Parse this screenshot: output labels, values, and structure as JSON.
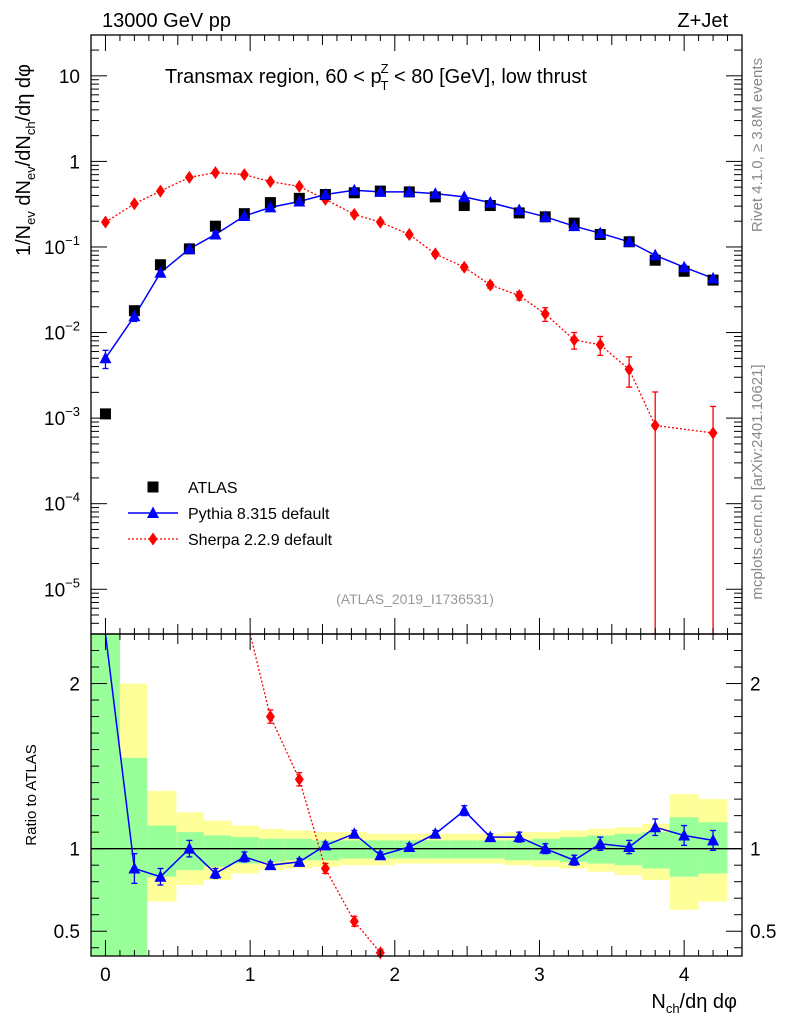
{
  "header": {
    "left": "13000 GeV pp",
    "right": "Z+Jet",
    "side_top": "Rivet 4.1.0, ≥ 3.8M events",
    "side_bottom": "mcplots.cern.ch [arXiv:2401.10621]",
    "analysis_id": "(ATLAS_2019_I1736531)"
  },
  "colors": {
    "data": "#000000",
    "pythia": "#0000ff",
    "sherpa": "#ff0000",
    "band_inner": "#99ff99",
    "band_outer": "#ffff99"
  },
  "chart_data": [
    {
      "type": "scatter",
      "title": "Transmax region, 60 < p_T^Z < 80 [GeV], low thrust",
      "title_parts": {
        "prefix": "Transmax region, 60 < p",
        "sup": "Z",
        "sub": "T",
        "suffix": " < 80 [GeV], low thrust"
      },
      "ylabel": "1/N_ev dN_ev/dN_ch/dη dφ",
      "ylabel_parts": [
        "1/N",
        "ev",
        " dN",
        "ev",
        "/dN",
        "ch",
        "/dη dφ"
      ],
      "yscale": "log",
      "ylim": [
        3e-06,
        30
      ],
      "xlim": [
        -0.1,
        4.4
      ],
      "ytick_labels": [
        {
          "v": 10,
          "base": "10",
          "exp": ""
        },
        {
          "v": 1,
          "base": "1",
          "exp": ""
        },
        {
          "v": 0.1,
          "base": "10",
          "exp": "−1"
        },
        {
          "v": 0.01,
          "base": "10",
          "exp": "−2"
        },
        {
          "v": 0.001,
          "base": "10",
          "exp": "−3"
        },
        {
          "v": 0.0001,
          "base": "10",
          "exp": "−4"
        },
        {
          "v": 1e-05,
          "base": "10",
          "exp": "−5"
        }
      ],
      "legend": [
        {
          "label": "ATLAS",
          "key": "atlas"
        },
        {
          "label": "Pythia 8.315 default",
          "key": "pythia"
        },
        {
          "label": "Sherpa 2.2.9 default",
          "key": "sherpa"
        }
      ],
      "series": [
        {
          "name": "ATLAS",
          "key": "atlas",
          "marker": "square",
          "x": [
            0.0,
            0.2,
            0.38,
            0.58,
            0.76,
            0.96,
            1.14,
            1.34,
            1.52,
            1.72,
            1.9,
            2.1,
            2.28,
            2.48,
            2.66,
            2.86,
            3.04,
            3.24,
            3.42,
            3.62,
            3.8,
            4.0,
            4.2
          ],
          "y": [
            0.00112,
            0.018,
            0.062,
            0.095,
            0.175,
            0.245,
            0.33,
            0.37,
            0.41,
            0.43,
            0.45,
            0.44,
            0.385,
            0.305,
            0.305,
            0.25,
            0.225,
            0.19,
            0.14,
            0.115,
            0.07,
            0.052,
            0.041
          ]
        },
        {
          "name": "Pythia 8.315 default",
          "key": "pythia",
          "marker": "triangle",
          "x": [
            0.0,
            0.2,
            0.38,
            0.58,
            0.76,
            0.96,
            1.14,
            1.34,
            1.52,
            1.72,
            1.9,
            2.1,
            2.28,
            2.48,
            2.66,
            2.86,
            3.04,
            3.24,
            3.42,
            3.62,
            3.8,
            4.0,
            4.2
          ],
          "y": [
            0.005,
            0.0155,
            0.05,
            0.095,
            0.14,
            0.23,
            0.29,
            0.34,
            0.41,
            0.46,
            0.44,
            0.44,
            0.42,
            0.385,
            0.33,
            0.27,
            0.225,
            0.175,
            0.145,
            0.115,
            0.08,
            0.058,
            0.043
          ],
          "err": [
            0.0012,
            0.002,
            0.004,
            0.005,
            0.007,
            0.01,
            0.01,
            0.01,
            0.01,
            0.01,
            0.01,
            0.01,
            0.01,
            0.01,
            0.01,
            0.008,
            0.007,
            0.006,
            0.005,
            0.004,
            0.003,
            0.003,
            0.002
          ]
        },
        {
          "name": "Sherpa 2.2.9 default",
          "key": "sherpa",
          "marker": "diamond",
          "x": [
            0.0,
            0.2,
            0.38,
            0.58,
            0.76,
            0.96,
            1.14,
            1.34,
            1.52,
            1.72,
            1.9,
            2.1,
            2.28,
            2.48,
            2.66,
            2.86,
            3.04,
            3.24,
            3.42,
            3.62,
            3.8,
            4.2
          ],
          "y": [
            0.195,
            0.32,
            0.45,
            0.65,
            0.74,
            0.7,
            0.58,
            0.51,
            0.36,
            0.24,
            0.195,
            0.14,
            0.083,
            0.058,
            0.036,
            0.027,
            0.0165,
            0.0082,
            0.0072,
            0.0037,
            0.00082,
            0.00067
          ],
          "err_lo": [
            0.01,
            0.015,
            0.02,
            0.025,
            0.03,
            0.03,
            0.025,
            0.02,
            0.015,
            0.012,
            0.01,
            0.008,
            0.005,
            0.004,
            0.003,
            0.003,
            0.003,
            0.0018,
            0.0018,
            0.0014,
            0.00082,
            0.00067
          ],
          "err_hi": [
            0.01,
            0.015,
            0.02,
            0.025,
            0.03,
            0.03,
            0.025,
            0.02,
            0.015,
            0.012,
            0.01,
            0.008,
            0.005,
            0.004,
            0.003,
            0.003,
            0.003,
            0.0018,
            0.0018,
            0.0015,
            0.0012,
            0.0007
          ]
        }
      ]
    },
    {
      "type": "line",
      "ylabel": "Ratio to ATLAS",
      "xlabel": "N_ch/dη dφ",
      "xlabel_parts": [
        "N",
        "ch",
        "/dη dφ"
      ],
      "xlim": [
        -0.1,
        4.4
      ],
      "ylim": [
        0.35,
        2.3
      ],
      "ytick_labels": [
        {
          "v": 0.5,
          "label": "0.5"
        },
        {
          "v": 1,
          "label": "1"
        },
        {
          "v": 2,
          "label": "2"
        }
      ],
      "xtick_labels": [
        {
          "v": 0,
          "label": "0"
        },
        {
          "v": 1,
          "label": "1"
        },
        {
          "v": 2,
          "label": "2"
        },
        {
          "v": 3,
          "label": "3"
        },
        {
          "v": 4,
          "label": "4"
        }
      ],
      "bands": {
        "edges": [
          -0.1,
          0.1,
          0.29,
          0.49,
          0.68,
          0.87,
          1.06,
          1.24,
          1.43,
          1.62,
          1.81,
          2.0,
          2.19,
          2.38,
          2.57,
          2.76,
          2.95,
          3.14,
          3.33,
          3.52,
          3.71,
          3.9,
          4.1,
          4.3
        ],
        "outer_lo": [
          0.35,
          0.35,
          0.68,
          0.78,
          0.81,
          0.85,
          0.87,
          0.88,
          0.89,
          0.9,
          0.9,
          0.91,
          0.91,
          0.91,
          0.91,
          0.9,
          0.89,
          0.88,
          0.86,
          0.84,
          0.81,
          0.63,
          0.68
        ],
        "outer_hi": [
          2.3,
          2.0,
          1.35,
          1.22,
          1.17,
          1.14,
          1.12,
          1.11,
          1.1,
          1.1,
          1.09,
          1.09,
          1.09,
          1.09,
          1.09,
          1.1,
          1.1,
          1.11,
          1.12,
          1.13,
          1.15,
          1.33,
          1.3
        ],
        "inner_lo": [
          0.35,
          0.35,
          0.83,
          0.87,
          0.89,
          0.91,
          0.92,
          0.93,
          0.93,
          0.94,
          0.94,
          0.94,
          0.94,
          0.94,
          0.94,
          0.93,
          0.93,
          0.92,
          0.91,
          0.9,
          0.88,
          0.83,
          0.85
        ],
        "inner_hi": [
          2.3,
          1.55,
          1.14,
          1.1,
          1.08,
          1.07,
          1.06,
          1.06,
          1.05,
          1.05,
          1.05,
          1.05,
          1.05,
          1.05,
          1.05,
          1.05,
          1.06,
          1.07,
          1.08,
          1.09,
          1.1,
          1.19,
          1.16
        ]
      },
      "series": [
        {
          "name": "Pythia 8.315 default",
          "key": "pythia",
          "x": [
            0.2,
            0.38,
            0.58,
            0.76,
            0.96,
            1.14,
            1.34,
            1.52,
            1.72,
            1.9,
            2.1,
            2.28,
            2.48,
            2.66,
            2.86,
            3.04,
            3.24,
            3.42,
            3.62,
            3.8,
            4.0,
            4.2
          ],
          "y": [
            0.88,
            0.83,
            1.0,
            0.85,
            0.95,
            0.9,
            0.92,
            1.02,
            1.09,
            0.96,
            1.01,
            1.09,
            1.23,
            1.07,
            1.07,
            1.0,
            0.93,
            1.03,
            1.01,
            1.13,
            1.08,
            1.05
          ],
          "err": [
            0.09,
            0.05,
            0.05,
            0.03,
            0.03,
            0.02,
            0.02,
            0.02,
            0.02,
            0.02,
            0.02,
            0.02,
            0.03,
            0.02,
            0.03,
            0.03,
            0.03,
            0.04,
            0.04,
            0.05,
            0.06,
            0.06
          ],
          "line_start": {
            "x": 0.0,
            "y": 2.3
          }
        },
        {
          "name": "Sherpa 2.2.9 default",
          "key": "sherpa",
          "x": [
            1.14,
            1.34,
            1.52,
            1.72,
            1.9
          ],
          "y": [
            1.8,
            1.42,
            0.88,
            0.56,
            0.37
          ],
          "err": [
            0.04,
            0.04,
            0.03,
            0.03,
            0.02
          ],
          "line_start": {
            "x": 1.0,
            "y": 2.3
          }
        }
      ]
    }
  ]
}
